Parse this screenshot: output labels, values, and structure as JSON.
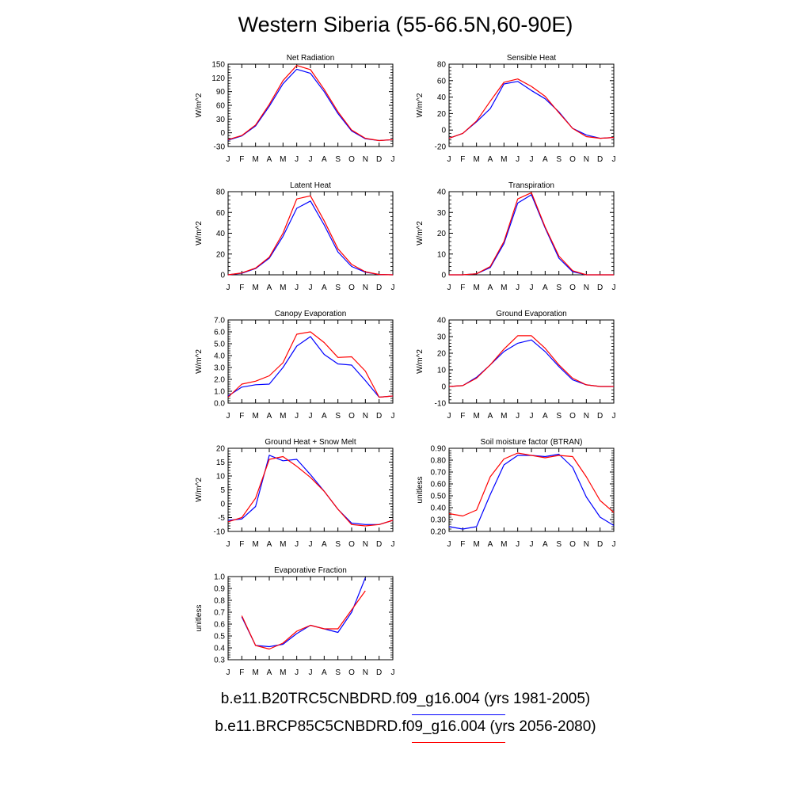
{
  "title": "Western Siberia (55-66.5N,60-90E)",
  "month_labels": [
    "J",
    "F",
    "M",
    "A",
    "M",
    "J",
    "J",
    "A",
    "S",
    "O",
    "N",
    "D",
    "J"
  ],
  "legend": [
    {
      "label": "b.e11.B20TRC5CNBDRD.f09_g16.004 (yrs 1981-2005)",
      "color": "#0000ff"
    },
    {
      "label": "b.e11.BRCP85C5CNBDRD.f09_g16.004 (yrs 2056-2080)",
      "color": "#ff0000"
    }
  ],
  "chart_data": [
    {
      "type": "line",
      "title": "Net Radiation",
      "ylabel": "W/m^2",
      "ylim": [
        -30,
        150
      ],
      "yticks": [
        "-30",
        "0",
        "30",
        "60",
        "90",
        "120",
        "150"
      ],
      "series": [
        {
          "color": "#0000ff",
          "values": [
            -16,
            -7,
            15,
            58,
            107,
            139,
            130,
            90,
            42,
            4,
            -13,
            -17,
            -15
          ]
        },
        {
          "color": "#ff0000",
          "values": [
            -15,
            -6,
            17,
            62,
            114,
            147,
            138,
            95,
            46,
            6,
            -12,
            -17,
            -15
          ]
        }
      ]
    },
    {
      "type": "line",
      "title": "Sensible Heat",
      "ylabel": "W/m^2",
      "ylim": [
        -20,
        80
      ],
      "yticks": [
        "-20",
        "0",
        "20",
        "40",
        "60",
        "80"
      ],
      "series": [
        {
          "color": "#0000ff",
          "values": [
            -10,
            -4,
            10,
            26,
            56,
            59,
            48,
            38,
            22,
            2,
            -6,
            -10,
            -9
          ]
        },
        {
          "color": "#ff0000",
          "values": [
            -10,
            -4,
            11,
            35,
            58,
            62,
            53,
            41,
            21,
            2,
            -8,
            -10,
            -9
          ]
        }
      ]
    },
    {
      "type": "line",
      "title": "Latent Heat",
      "ylabel": "W/m^2",
      "ylim": [
        0,
        80
      ],
      "yticks": [
        "0",
        "20",
        "40",
        "60",
        "80"
      ],
      "series": [
        {
          "color": "#0000ff",
          "values": [
            0,
            1.5,
            6,
            16,
            37,
            64,
            71,
            48,
            22,
            8,
            2.5,
            0.3,
            0
          ]
        },
        {
          "color": "#ff0000",
          "values": [
            0,
            1.8,
            6.5,
            17,
            40,
            73,
            76,
            52,
            25,
            10,
            3,
            0.3,
            0
          ]
        }
      ]
    },
    {
      "type": "line",
      "title": "Transpiration",
      "ylabel": "W/m^2",
      "ylim": [
        0,
        40
      ],
      "yticks": [
        "0",
        "10",
        "20",
        "30",
        "40"
      ],
      "series": [
        {
          "color": "#0000ff",
          "values": [
            0,
            0,
            0.5,
            3.5,
            15,
            34.5,
            38.5,
            22.5,
            8,
            1.5,
            0,
            0,
            0
          ]
        },
        {
          "color": "#ff0000",
          "values": [
            0,
            0,
            0.5,
            4,
            16,
            36.5,
            39.5,
            23,
            9,
            2,
            0,
            0,
            0
          ]
        }
      ]
    },
    {
      "type": "line",
      "title": "Canopy Evaporation",
      "ylabel": "W/m^2",
      "ylim": [
        0,
        7
      ],
      "yticks": [
        "0.0",
        "1.0",
        "2.0",
        "3.0",
        "4.0",
        "5.0",
        "6.0",
        "7.0"
      ],
      "series": [
        {
          "color": "#0000ff",
          "values": [
            0.6,
            1.35,
            1.55,
            1.6,
            3.0,
            4.8,
            5.6,
            4.1,
            3.3,
            3.2,
            1.9,
            0.5,
            0.6
          ]
        },
        {
          "color": "#ff0000",
          "values": [
            0.5,
            1.6,
            1.85,
            2.3,
            3.4,
            5.8,
            6.0,
            5.1,
            3.85,
            3.9,
            2.7,
            0.5,
            0.6
          ]
        }
      ]
    },
    {
      "type": "line",
      "title": "Ground Evaporation",
      "ylabel": "W/m^2",
      "ylim": [
        -10,
        40
      ],
      "yticks": [
        "-10",
        "0",
        "10",
        "20",
        "30",
        "40"
      ],
      "series": [
        {
          "color": "#0000ff",
          "values": [
            0,
            0.5,
            5.5,
            13,
            21,
            26,
            28,
            21,
            12,
            4,
            1,
            0,
            0
          ]
        },
        {
          "color": "#ff0000",
          "values": [
            0,
            0.5,
            5,
            13,
            22.5,
            30.5,
            30.5,
            23,
            13,
            5,
            1,
            0,
            0
          ]
        }
      ]
    },
    {
      "type": "line",
      "title": "Ground Heat + Snow Melt",
      "ylabel": "W/m^2",
      "ylim": [
        -10,
        20
      ],
      "yticks": [
        "-10",
        "-5",
        "0",
        "5",
        "10",
        "15",
        "20"
      ],
      "series": [
        {
          "color": "#0000ff",
          "values": [
            -6,
            -5.5,
            -1,
            17.5,
            15.5,
            16,
            10.5,
            4.5,
            -2,
            -7,
            -7.5,
            -7.5,
            -6
          ]
        },
        {
          "color": "#ff0000",
          "values": [
            -6.5,
            -5,
            2,
            16,
            17,
            13.5,
            9.5,
            4.5,
            -2,
            -7.5,
            -8,
            -7.5,
            -6
          ]
        }
      ]
    },
    {
      "type": "line",
      "title": "Soil moisture factor (BTRAN)",
      "ylabel": "unitless",
      "ylim": [
        0.2,
        0.9
      ],
      "yticks": [
        "0.20",
        "0.30",
        "0.40",
        "0.50",
        "0.60",
        "0.70",
        "0.80",
        "0.90"
      ],
      "series": [
        {
          "color": "#0000ff",
          "values": [
            0.24,
            0.22,
            0.24,
            0.51,
            0.76,
            0.84,
            0.84,
            0.83,
            0.85,
            0.74,
            0.49,
            0.32,
            0.25
          ]
        },
        {
          "color": "#ff0000",
          "values": [
            0.35,
            0.33,
            0.38,
            0.66,
            0.81,
            0.86,
            0.84,
            0.82,
            0.84,
            0.83,
            0.66,
            0.46,
            0.36
          ]
        }
      ]
    },
    {
      "type": "line",
      "title": "Evaporative Fraction",
      "ylabel": "unitless",
      "ylim": [
        0.3,
        1.0
      ],
      "yticks": [
        "0.3",
        "0.4",
        "0.5",
        "0.6",
        "0.7",
        "0.8",
        "0.9",
        "1.0"
      ],
      "series": [
        {
          "color": "#0000ff",
          "values": [
            null,
            0.66,
            0.42,
            0.41,
            0.43,
            0.52,
            0.59,
            0.56,
            0.53,
            0.7,
            0.99,
            null,
            null
          ]
        },
        {
          "color": "#ff0000",
          "values": [
            null,
            0.67,
            0.42,
            0.39,
            0.44,
            0.54,
            0.59,
            0.56,
            0.56,
            0.72,
            0.88,
            null,
            null
          ]
        }
      ]
    }
  ]
}
